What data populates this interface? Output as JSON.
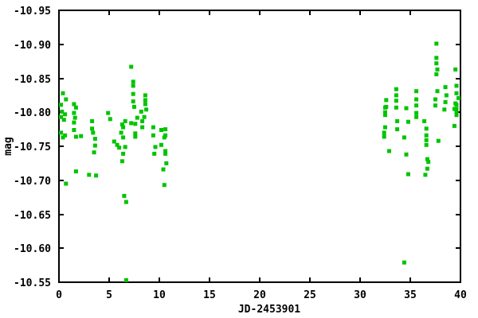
{
  "figure": {
    "background": "#ffffff",
    "axis_color": "#000000",
    "text_color": "#000000"
  },
  "chart_data": {
    "type": "scatter",
    "title": "",
    "xlabel": "JD-2453901",
    "ylabel": "mag",
    "xlim": [
      0,
      40
    ],
    "ylim": [
      -10.95,
      -10.55
    ],
    "y_axis_reversed_display": true,
    "grid": false,
    "legend": null,
    "xticks": {
      "values": [
        0,
        5,
        10,
        15,
        20,
        25,
        30,
        35,
        40
      ],
      "labels": [
        "0",
        "5",
        "10",
        "15",
        "20",
        "25",
        "30",
        "35",
        "40"
      ]
    },
    "yticks": {
      "values": [
        -10.95,
        -10.9,
        -10.85,
        -10.8,
        -10.75,
        -10.7,
        -10.65,
        -10.6,
        -10.55
      ],
      "labels": [
        "-10.95",
        "-10.90",
        "-10.85",
        "-10.80",
        "-10.75",
        "-10.70",
        "-10.65",
        "-10.60",
        "-10.55"
      ]
    },
    "marker": {
      "shape": "square",
      "size": 5,
      "color": "#00c400"
    },
    "series": [
      {
        "name": "mag",
        "points": [
          [
            0.2,
            -10.811
          ],
          [
            0.2,
            -10.793
          ],
          [
            0.2,
            -10.77
          ],
          [
            0.3,
            -10.801
          ],
          [
            0.4,
            -10.828
          ],
          [
            0.4,
            -10.763
          ],
          [
            0.5,
            -10.789
          ],
          [
            0.6,
            -10.797
          ],
          [
            0.6,
            -10.766
          ],
          [
            0.7,
            -10.819
          ],
          [
            0.7,
            -10.695
          ],
          [
            1.5,
            -10.812
          ],
          [
            1.5,
            -10.799
          ],
          [
            1.5,
            -10.785
          ],
          [
            1.5,
            -10.774
          ],
          [
            1.6,
            -10.792
          ],
          [
            1.7,
            -10.807
          ],
          [
            1.7,
            -10.764
          ],
          [
            1.7,
            -10.713
          ],
          [
            2.2,
            -10.765
          ],
          [
            3.0,
            -10.708
          ],
          [
            3.3,
            -10.787
          ],
          [
            3.3,
            -10.776
          ],
          [
            3.4,
            -10.77
          ],
          [
            3.5,
            -10.741
          ],
          [
            3.6,
            -10.761
          ],
          [
            3.6,
            -10.751
          ],
          [
            3.7,
            -10.707
          ],
          [
            4.9,
            -10.799
          ],
          [
            5.1,
            -10.79
          ],
          [
            5.5,
            -10.757
          ],
          [
            5.8,
            -10.752
          ],
          [
            6.0,
            -10.748
          ],
          [
            6.2,
            -10.77
          ],
          [
            6.3,
            -10.782
          ],
          [
            6.3,
            -10.728
          ],
          [
            6.4,
            -10.778
          ],
          [
            6.4,
            -10.763
          ],
          [
            6.4,
            -10.739
          ],
          [
            6.5,
            -10.677
          ],
          [
            6.6,
            -10.787
          ],
          [
            6.6,
            -10.749
          ],
          [
            6.7,
            -10.668
          ],
          [
            6.7,
            -10.553
          ],
          [
            7.2,
            -10.867
          ],
          [
            7.2,
            -10.784
          ],
          [
            7.4,
            -10.845
          ],
          [
            7.4,
            -10.839
          ],
          [
            7.4,
            -10.827
          ],
          [
            7.4,
            -10.816
          ],
          [
            7.5,
            -10.808
          ],
          [
            7.6,
            -10.783
          ],
          [
            7.6,
            -10.769
          ],
          [
            7.6,
            -10.764
          ],
          [
            7.8,
            -10.792
          ],
          [
            8.2,
            -10.801
          ],
          [
            8.3,
            -10.787
          ],
          [
            8.3,
            -10.778
          ],
          [
            8.5,
            -10.793
          ],
          [
            8.6,
            -10.825
          ],
          [
            8.6,
            -10.818
          ],
          [
            8.6,
            -10.812
          ],
          [
            8.7,
            -10.804
          ],
          [
            9.4,
            -10.778
          ],
          [
            9.4,
            -10.766
          ],
          [
            9.5,
            -10.739
          ],
          [
            9.6,
            -10.749
          ],
          [
            10.2,
            -10.774
          ],
          [
            10.2,
            -10.752
          ],
          [
            10.4,
            -10.716
          ],
          [
            10.5,
            -10.763
          ],
          [
            10.5,
            -10.693
          ],
          [
            10.6,
            -10.775
          ],
          [
            10.6,
            -10.766
          ],
          [
            10.6,
            -10.743
          ],
          [
            10.6,
            -10.739
          ],
          [
            10.7,
            -10.725
          ],
          [
            32.4,
            -10.77
          ],
          [
            32.4,
            -10.764
          ],
          [
            32.5,
            -10.807
          ],
          [
            32.5,
            -10.8
          ],
          [
            32.5,
            -10.796
          ],
          [
            32.5,
            -10.778
          ],
          [
            32.6,
            -10.818
          ],
          [
            32.6,
            -10.808
          ],
          [
            32.9,
            -10.743
          ],
          [
            33.6,
            -10.834
          ],
          [
            33.6,
            -10.825
          ],
          [
            33.6,
            -10.817
          ],
          [
            33.6,
            -10.807
          ],
          [
            33.7,
            -10.787
          ],
          [
            33.7,
            -10.775
          ],
          [
            34.4,
            -10.763
          ],
          [
            34.4,
            -10.579
          ],
          [
            34.6,
            -10.806
          ],
          [
            34.6,
            -10.738
          ],
          [
            34.8,
            -10.786
          ],
          [
            34.8,
            -10.709
          ],
          [
            35.6,
            -10.831
          ],
          [
            35.6,
            -10.819
          ],
          [
            35.6,
            -10.81
          ],
          [
            35.6,
            -10.799
          ],
          [
            35.6,
            -10.793
          ],
          [
            36.4,
            -10.787
          ],
          [
            36.5,
            -10.708
          ],
          [
            36.6,
            -10.776
          ],
          [
            36.6,
            -10.766
          ],
          [
            36.6,
            -10.759
          ],
          [
            36.6,
            -10.752
          ],
          [
            36.7,
            -10.731
          ],
          [
            36.7,
            -10.717
          ],
          [
            36.8,
            -10.727
          ],
          [
            37.5,
            -10.819
          ],
          [
            37.5,
            -10.81
          ],
          [
            37.6,
            -10.901
          ],
          [
            37.6,
            -10.88
          ],
          [
            37.6,
            -10.872
          ],
          [
            37.6,
            -10.856
          ],
          [
            37.7,
            -10.863
          ],
          [
            37.7,
            -10.831
          ],
          [
            37.8,
            -10.758
          ],
          [
            38.4,
            -10.804
          ],
          [
            38.5,
            -10.837
          ],
          [
            38.5,
            -10.815
          ],
          [
            38.6,
            -10.825
          ],
          [
            39.4,
            -10.805
          ],
          [
            39.4,
            -10.78
          ],
          [
            39.5,
            -10.863
          ],
          [
            39.5,
            -10.813
          ],
          [
            39.6,
            -10.839
          ],
          [
            39.6,
            -10.828
          ],
          [
            39.6,
            -10.811
          ],
          [
            39.6,
            -10.805
          ],
          [
            39.6,
            -10.8
          ],
          [
            39.6,
            -10.796
          ],
          [
            39.8,
            -10.821
          ]
        ]
      }
    ]
  }
}
